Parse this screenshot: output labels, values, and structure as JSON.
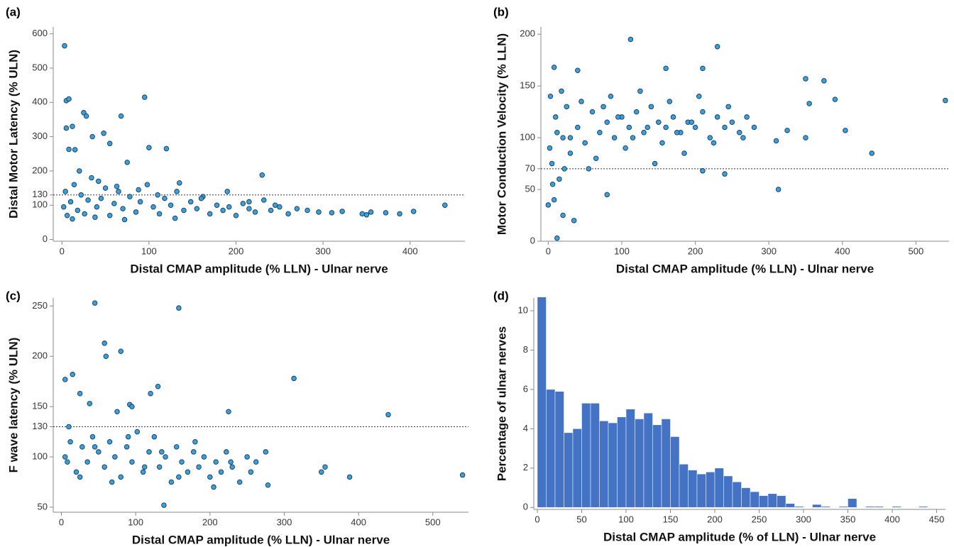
{
  "chart_data": [
    {
      "type": "scatter",
      "panel_label": "(a)",
      "x_label": "Distal CMAP amplitude (% LLN) - Ulnar nerve",
      "y_label": "Distal Motor Latency (% ULN)",
      "xlim": [
        -10,
        463
      ],
      "ylim": [
        -5,
        620
      ],
      "xticks": [
        0,
        100,
        200,
        300,
        400
      ],
      "yticks": [
        0,
        100,
        130,
        200,
        300,
        400,
        500,
        600
      ],
      "reference": 130,
      "color": "#3b9fdb",
      "x": [
        3,
        5,
        8,
        95,
        5,
        12,
        25,
        28,
        68,
        48,
        100,
        120,
        35,
        8,
        15,
        230,
        55,
        75,
        2,
        4,
        6,
        10,
        14,
        18,
        22,
        26,
        30,
        34,
        40,
        45,
        50,
        55,
        60,
        65,
        70,
        78,
        85,
        90,
        98,
        105,
        112,
        118,
        125,
        132,
        140,
        148,
        155,
        162,
        170,
        178,
        185,
        192,
        200,
        208,
        215,
        222,
        232,
        240,
        250,
        260,
        270,
        282,
        295,
        310,
        322,
        345,
        350,
        355,
        372,
        388,
        404,
        440,
        20,
        42,
        63,
        88,
        110,
        135,
        160,
        190,
        215,
        245,
        12,
        38,
        72,
        130
      ],
      "y": [
        565,
        405,
        410,
        415,
        325,
        330,
        370,
        360,
        360,
        310,
        268,
        265,
        300,
        263,
        262,
        188,
        280,
        225,
        95,
        140,
        70,
        110,
        160,
        85,
        130,
        75,
        115,
        180,
        95,
        120,
        150,
        70,
        105,
        140,
        90,
        125,
        80,
        110,
        160,
        95,
        75,
        120,
        100,
        140,
        85,
        110,
        90,
        125,
        75,
        100,
        85,
        95,
        70,
        105,
        90,
        80,
        115,
        85,
        95,
        75,
        90,
        85,
        80,
        78,
        82,
        75,
        72,
        80,
        78,
        75,
        82,
        100,
        200,
        170,
        155,
        145,
        130,
        165,
        120,
        140,
        110,
        100,
        60,
        65,
        58,
        62
      ]
    },
    {
      "type": "scatter",
      "panel_label": "(b)",
      "x_label": "Distal CMAP amplitude (% LLN) - Ulnar nerve",
      "y_label": "Motor Conduction Velocity (% LLN)",
      "xlim": [
        -10,
        545
      ],
      "ylim": [
        0,
        207
      ],
      "xticks": [
        0,
        100,
        200,
        300,
        400,
        500
      ],
      "yticks": [
        0,
        50,
        70,
        100,
        150,
        200
      ],
      "reference": 70,
      "color": "#3b9fdb",
      "x": [
        112,
        230,
        8,
        40,
        160,
        210,
        350,
        375,
        440,
        540,
        404,
        313,
        12,
        35,
        20,
        0,
        8,
        80,
        240,
        210,
        390,
        355,
        310,
        325,
        350,
        2,
        5,
        10,
        15,
        20,
        25,
        30,
        40,
        50,
        60,
        70,
        80,
        90,
        100,
        110,
        120,
        130,
        140,
        150,
        160,
        170,
        180,
        190,
        200,
        210,
        220,
        230,
        240,
        250,
        260,
        270,
        280,
        3,
        12,
        22,
        45,
        65,
        85,
        105,
        125,
        145,
        165,
        185,
        205,
        225,
        245,
        265,
        6,
        18,
        30,
        55,
        75,
        95,
        115,
        135,
        155,
        175,
        195
      ],
      "y": [
        195,
        188,
        168,
        165,
        167,
        167,
        157,
        155,
        85,
        136,
        107,
        50,
        3,
        20,
        25,
        35,
        40,
        45,
        65,
        68,
        137,
        133,
        97,
        107,
        100,
        90,
        75,
        120,
        60,
        100,
        130,
        85,
        110,
        95,
        125,
        105,
        115,
        100,
        120,
        110,
        125,
        105,
        130,
        115,
        110,
        120,
        105,
        115,
        110,
        125,
        100,
        120,
        110,
        115,
        105,
        120,
        110,
        140,
        105,
        70,
        135,
        80,
        140,
        90,
        145,
        75,
        135,
        85,
        140,
        95,
        130,
        100,
        55,
        145,
        100,
        70,
        130,
        120,
        100,
        110,
        95,
        105,
        115
      ]
    },
    {
      "type": "scatter",
      "panel_label": "(c)",
      "x_label": "Distal CMAP amplitude (% LLN) - Ulnar nerve",
      "y_label": "F wave latency (% ULN)",
      "xlim": [
        -11,
        548
      ],
      "ylim": [
        45,
        258
      ],
      "xticks": [
        0,
        100,
        200,
        300,
        400,
        500
      ],
      "yticks": [
        50,
        100,
        130,
        150,
        200,
        250
      ],
      "reference": 130,
      "color": "#3b9fdb",
      "x": [
        45,
        158,
        58,
        80,
        60,
        5,
        15,
        313,
        130,
        120,
        25,
        440,
        225,
        38,
        92,
        95,
        350,
        355,
        388,
        540,
        138,
        10,
        75,
        5,
        12,
        20,
        28,
        35,
        42,
        50,
        58,
        65,
        72,
        80,
        88,
        95,
        102,
        110,
        118,
        125,
        132,
        140,
        148,
        155,
        162,
        170,
        178,
        185,
        192,
        200,
        208,
        215,
        222,
        230,
        240,
        250,
        262,
        275,
        8,
        25,
        45,
        68,
        90,
        112,
        135,
        158,
        180,
        205,
        228,
        255,
        278
      ],
      "y": [
        253,
        248,
        213,
        205,
        200,
        177,
        182,
        178,
        170,
        163,
        163,
        142,
        145,
        153,
        152,
        150,
        85,
        90,
        80,
        82,
        52,
        130,
        145,
        100,
        115,
        85,
        110,
        95,
        120,
        105,
        90,
        115,
        100,
        80,
        110,
        95,
        125,
        85,
        105,
        120,
        90,
        100,
        75,
        110,
        95,
        85,
        105,
        90,
        100,
        80,
        95,
        85,
        105,
        90,
        75,
        100,
        95,
        105,
        95,
        80,
        110,
        75,
        120,
        90,
        105,
        80,
        115,
        70,
        95,
        85,
        72
      ]
    },
    {
      "type": "histogram",
      "panel_label": "(d)",
      "x_label": "Distal CMAP amplitude (% of LLN) - Ulnar nerve",
      "y_label": "Percentage of ulnar nerves",
      "xlim": [
        -4,
        460
      ],
      "ylim": [
        -0.1,
        10.65
      ],
      "xticks": [
        0,
        50,
        100,
        150,
        200,
        250,
        300,
        350,
        400,
        450
      ],
      "yticks": [
        0,
        2,
        4,
        6,
        8,
        10
      ],
      "color": "#4472c4",
      "bins": [
        0,
        10,
        20,
        30,
        40,
        50,
        60,
        70,
        80,
        90,
        100,
        110,
        120,
        130,
        140,
        150,
        160,
        170,
        180,
        190,
        200,
        210,
        220,
        230,
        240,
        250,
        260,
        270,
        280,
        290,
        300,
        310,
        320,
        330,
        340,
        350,
        360,
        370,
        380,
        390,
        400,
        410,
        420,
        430,
        440
      ],
      "counts": [
        10.7,
        6.0,
        5.9,
        3.8,
        4.0,
        5.3,
        5.3,
        4.4,
        4.3,
        4.6,
        5.0,
        4.5,
        4.8,
        4.2,
        4.5,
        3.6,
        2.2,
        1.9,
        1.7,
        1.8,
        2.0,
        1.6,
        1.3,
        1.0,
        0.8,
        0.6,
        0.7,
        0.6,
        0.2,
        0.05,
        0,
        0.15,
        0.05,
        0,
        0.05,
        0.45,
        0,
        0.05,
        0.05,
        0,
        0.05,
        0,
        0,
        0.05
      ]
    }
  ]
}
